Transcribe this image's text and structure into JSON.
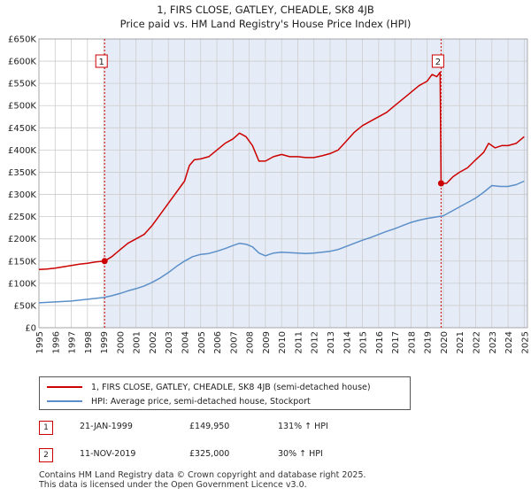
{
  "chart_data": {
    "type": "line",
    "title": "1, FIRS CLOSE, GATLEY, CHEADLE, SK8 4JB",
    "subtitle": "Price paid vs. HM Land Registry's House Price Index (HPI)",
    "xlim": [
      1995,
      2025.2
    ],
    "ylim": [
      0,
      650000
    ],
    "y_ticks": [
      {
        "value": 0,
        "label": "£0"
      },
      {
        "value": 50000,
        "label": "£50K"
      },
      {
        "value": 100000,
        "label": "£100K"
      },
      {
        "value": 150000,
        "label": "£150K"
      },
      {
        "value": 200000,
        "label": "£200K"
      },
      {
        "value": 250000,
        "label": "£250K"
      },
      {
        "value": 300000,
        "label": "£300K"
      },
      {
        "value": 350000,
        "label": "£350K"
      },
      {
        "value": 400000,
        "label": "£400K"
      },
      {
        "value": 450000,
        "label": "£450K"
      },
      {
        "value": 500000,
        "label": "£500K"
      },
      {
        "value": 550000,
        "label": "£550K"
      },
      {
        "value": 600000,
        "label": "£600K"
      },
      {
        "value": 650000,
        "label": "£650K"
      }
    ],
    "x_ticks": [
      "1995",
      "1996",
      "1997",
      "1998",
      "1999",
      "2000",
      "2001",
      "2002",
      "2003",
      "2004",
      "2005",
      "2006",
      "2007",
      "2008",
      "2009",
      "2010",
      "2011",
      "2012",
      "2013",
      "2014",
      "2015",
      "2016",
      "2017",
      "2018",
      "2019",
      "2020",
      "2021",
      "2022",
      "2023",
      "2024",
      "2025"
    ],
    "series": [
      {
        "name": "1, FIRS CLOSE, GATLEY, CHEADLE, SK8 4JB (semi-detached house)",
        "color": "#cc0000",
        "x": [
          1995.0,
          1995.5,
          1996.0,
          1996.5,
          1997.0,
          1997.5,
          1998.0,
          1998.5,
          1999.06,
          1999.5,
          2000.0,
          2000.5,
          2001.0,
          2001.5,
          2002.0,
          2002.5,
          2003.0,
          2003.5,
          2004.0,
          2004.3,
          2004.6,
          2005.0,
          2005.5,
          2006.0,
          2006.5,
          2007.0,
          2007.4,
          2007.8,
          2008.2,
          2008.6,
          2009.0,
          2009.5,
          2010.0,
          2010.5,
          2011.0,
          2011.5,
          2012.0,
          2012.5,
          2013.0,
          2013.5,
          2014.0,
          2014.5,
          2015.0,
          2015.5,
          2016.0,
          2016.5,
          2017.0,
          2017.5,
          2018.0,
          2018.5,
          2019.0,
          2019.3,
          2019.6,
          2019.8,
          2019.86,
          2020.2,
          2020.6,
          2021.0,
          2021.5,
          2022.0,
          2022.5,
          2022.8,
          2023.2,
          2023.6,
          2024.0,
          2024.5,
          2025.0
        ],
        "y": [
          131000,
          132000,
          134000,
          137000,
          140000,
          143000,
          145000,
          148000,
          149950,
          160000,
          175000,
          190000,
          200000,
          210000,
          230000,
          255000,
          280000,
          305000,
          330000,
          365000,
          378000,
          380000,
          385000,
          400000,
          415000,
          425000,
          438000,
          430000,
          410000,
          375000,
          375000,
          385000,
          390000,
          385000,
          385000,
          383000,
          383000,
          387000,
          392000,
          400000,
          420000,
          440000,
          455000,
          465000,
          475000,
          485000,
          500000,
          515000,
          530000,
          545000,
          555000,
          570000,
          565000,
          575000,
          325000,
          325000,
          340000,
          350000,
          360000,
          378000,
          395000,
          415000,
          405000,
          410000,
          410000,
          415000,
          430000
        ]
      },
      {
        "name": "HPI: Average price, semi-detached house, Stockport",
        "color": "#5b8fc9",
        "x": [
          1995.0,
          1995.5,
          1996.0,
          1996.5,
          1997.0,
          1997.5,
          1998.0,
          1998.5,
          1999.0,
          1999.5,
          2000.0,
          2000.5,
          2001.0,
          2001.5,
          2002.0,
          2002.5,
          2003.0,
          2003.5,
          2004.0,
          2004.5,
          2005.0,
          2005.5,
          2006.0,
          2006.5,
          2007.0,
          2007.4,
          2007.8,
          2008.2,
          2008.6,
          2009.0,
          2009.5,
          2010.0,
          2010.5,
          2011.0,
          2011.5,
          2012.0,
          2012.5,
          2013.0,
          2013.5,
          2014.0,
          2014.5,
          2015.0,
          2015.5,
          2016.0,
          2016.5,
          2017.0,
          2017.5,
          2018.0,
          2018.5,
          2019.0,
          2019.5,
          2020.0,
          2020.5,
          2021.0,
          2021.5,
          2022.0,
          2022.5,
          2023.0,
          2023.5,
          2024.0,
          2024.5,
          2025.0
        ],
        "y": [
          56000,
          57000,
          58000,
          59000,
          60000,
          62000,
          64000,
          66000,
          68000,
          72000,
          77000,
          83000,
          88000,
          94000,
          102000,
          112000,
          124000,
          138000,
          150000,
          160000,
          165000,
          167000,
          172000,
          178000,
          185000,
          190000,
          188000,
          182000,
          168000,
          162000,
          168000,
          170000,
          169000,
          168000,
          167000,
          168000,
          170000,
          172000,
          176000,
          183000,
          190000,
          197000,
          203000,
          210000,
          217000,
          223000,
          230000,
          237000,
          242000,
          246000,
          249000,
          252000,
          262000,
          272000,
          282000,
          292000,
          305000,
          320000,
          318000,
          318000,
          322000,
          330000
        ]
      }
    ],
    "sales": [
      {
        "id": "1",
        "date": "21-JAN-1999",
        "x": 1999.06,
        "price": 149950,
        "price_label": "£149,950",
        "hpi_change": "131% ↑ HPI"
      },
      {
        "id": "2",
        "date": "11-NOV-2019",
        "x": 2019.86,
        "price": 325000,
        "price_label": "£325,000",
        "hpi_change": "30% ↑ HPI"
      }
    ],
    "shaded_regions": [
      [
        1999.06,
        2025.2
      ]
    ],
    "legend": {
      "position": "bottom",
      "property_label": "1, FIRS CLOSE, GATLEY, CHEADLE, SK8 4JB (semi-detached house)",
      "hpi_label": "HPI: Average price, semi-detached house, Stockport"
    }
  },
  "footer": {
    "line1": "Contains HM Land Registry data © Crown copyright and database right 2025.",
    "line2": "This data is licensed under the Open Government Licence v3.0."
  },
  "colors": {
    "property_line": "#cc0000",
    "hpi_line": "#5b8fc9",
    "shade": "#e6ecf7",
    "grid": "#cccccc"
  }
}
